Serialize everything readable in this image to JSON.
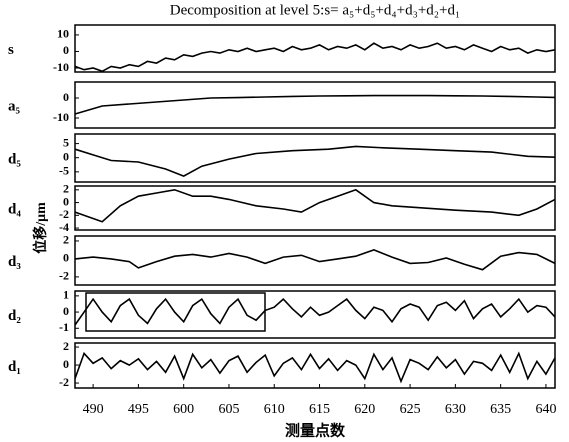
{
  "title": "Decomposition at level 5:s= a₅+d₅+d₄+d₃+d₂+d₁",
  "xlabel": "测量点数",
  "ylabel": "位移/μm",
  "xlim": [
    488,
    541
  ],
  "xticks": [
    490,
    495,
    {
      "value": 500,
      "label": "600"
    },
    {
      "value": 505,
      "label": "605"
    },
    {
      "value": 510,
      "label": "610"
    },
    {
      "value": 515,
      "label": "615"
    },
    {
      "value": 520,
      "label": "620"
    },
    {
      "value": 525,
      "label": "625"
    },
    {
      "value": 530,
      "label": "630"
    },
    {
      "value": 535,
      "label": "635"
    },
    {
      "value": 540,
      "label": "640"
    }
  ],
  "chart_data": [
    {
      "type": "line",
      "label": "s",
      "color": "#000000",
      "ylim": [
        -12.4,
        16
      ],
      "yticks": [
        -10,
        0,
        10
      ],
      "x": [
        488,
        489,
        490,
        491,
        492,
        493,
        494,
        495,
        496,
        497,
        498,
        499,
        500,
        501,
        502,
        503,
        504,
        505,
        506,
        507,
        508,
        509,
        510,
        511,
        512,
        513,
        514,
        515,
        516,
        517,
        518,
        519,
        520,
        521,
        522,
        523,
        524,
        525,
        526,
        527,
        528,
        529,
        530,
        531,
        532,
        533,
        534,
        535,
        536,
        537,
        538,
        539,
        540,
        541
      ],
      "values": [
        -9,
        -11,
        -10,
        -12,
        -9,
        -10,
        -8,
        -9,
        -6,
        -7,
        -4,
        -5,
        -2,
        -3,
        -1,
        0,
        -1,
        1,
        0,
        2,
        0,
        1,
        2,
        0,
        3,
        1,
        2,
        4,
        1,
        3,
        2,
        4,
        1,
        5,
        2,
        3,
        1,
        4,
        2,
        3,
        5,
        2,
        3,
        1,
        4,
        2,
        0,
        3,
        1,
        2,
        -1,
        1,
        0,
        1
      ]
    },
    {
      "type": "line",
      "label": "a₅",
      "color": "#000000",
      "ylim": [
        -15,
        8
      ],
      "yticks": [
        -10,
        0
      ],
      "x": [
        488,
        491,
        494,
        497,
        500,
        503,
        506,
        509,
        512,
        515,
        518,
        521,
        524,
        527,
        530,
        533,
        536,
        539,
        541
      ],
      "values": [
        -8,
        -4,
        -3,
        -2,
        -1,
        0,
        0.2,
        0.5,
        0.8,
        1,
        1.1,
        1.2,
        1.2,
        1.2,
        1.1,
        1,
        0.8,
        0.5,
        0.3
      ]
    },
    {
      "type": "line",
      "label": "d₅",
      "color": "#000000",
      "ylim": [
        -8.6,
        8.4
      ],
      "yticks": [
        -5,
        0,
        5
      ],
      "x": [
        488,
        490,
        492,
        495,
        498,
        500,
        502,
        505,
        508,
        512,
        516,
        519,
        522,
        526,
        530,
        534,
        538,
        541
      ],
      "values": [
        3,
        1,
        -1,
        -1.5,
        -4,
        -6.5,
        -3,
        -0.5,
        1.5,
        2.5,
        3,
        4,
        3.5,
        3,
        2.5,
        2,
        0.5,
        0.2
      ]
    },
    {
      "type": "line",
      "label": "d₄",
      "color": "#000000",
      "ylim": [
        -4.3,
        2.6
      ],
      "yticks": [
        -4,
        -2,
        0,
        2
      ],
      "x": [
        488,
        490,
        491,
        493,
        495,
        497,
        499,
        501,
        503,
        505,
        508,
        511,
        513,
        515,
        517,
        519,
        521,
        523,
        526,
        530,
        534,
        537,
        539,
        541
      ],
      "values": [
        -1.5,
        -2.5,
        -3,
        -0.5,
        1,
        1.5,
        2,
        1,
        1,
        0.5,
        -0.5,
        -1,
        -1.5,
        0,
        1,
        2,
        0,
        -0.5,
        -0.8,
        -1.2,
        -1.5,
        -2,
        -1,
        0.5
      ]
    },
    {
      "type": "line",
      "label": "d₃",
      "color": "#000000",
      "ylim": [
        -2.9,
        2.55
      ],
      "yticks": [
        -2,
        0,
        2
      ],
      "x": [
        488,
        490,
        492,
        494,
        495,
        497,
        499,
        501,
        503,
        505,
        507,
        509,
        511,
        513,
        515,
        517,
        519,
        521,
        523,
        525,
        527,
        529,
        531,
        533,
        535,
        537,
        539,
        541
      ],
      "values": [
        0,
        0.2,
        0,
        -0.3,
        -1,
        -0.3,
        0.3,
        0.5,
        0.2,
        0.6,
        0.2,
        -0.5,
        0.2,
        0.4,
        -0.3,
        0,
        0.3,
        1,
        0.2,
        -0.5,
        -0.4,
        0.1,
        -0.6,
        -1.2,
        0.3,
        0.7,
        0.5,
        -0.5
      ]
    },
    {
      "type": "line",
      "label": "d₂",
      "color": "#000000",
      "ylim": [
        -1.6,
        1.3
      ],
      "yticks": [
        -1,
        0,
        1
      ],
      "x": [
        488,
        489,
        490,
        491,
        492,
        493,
        494,
        495,
        496,
        497,
        498,
        499,
        500,
        501,
        502,
        503,
        504,
        505,
        506,
        507,
        508,
        509,
        510,
        511,
        512,
        513,
        514,
        515,
        516,
        517,
        518,
        519,
        520,
        521,
        522,
        523,
        524,
        525,
        526,
        527,
        528,
        529,
        530,
        531,
        532,
        533,
        534,
        535,
        536,
        537,
        538,
        539,
        540,
        541
      ],
      "values": [
        -0.8,
        0,
        0.8,
        0,
        -0.6,
        0.4,
        0.8,
        -0.2,
        -0.7,
        0.2,
        0.8,
        0,
        -0.6,
        0.4,
        0.8,
        -0.1,
        -0.7,
        0.3,
        0.8,
        -0.2,
        -0.5,
        0.1,
        0.3,
        0.8,
        0.2,
        -0.3,
        0.3,
        -0.2,
        0,
        0.4,
        0.8,
        0.1,
        -0.4,
        0.3,
        0.1,
        -0.6,
        0.2,
        0.5,
        0.3,
        -0.5,
        0.4,
        0.6,
        0.1,
        0.7,
        -0.4,
        0.2,
        0.5,
        -0.3,
        0.2,
        0.8,
        0,
        0.4,
        0.3,
        -0.3
      ]
    },
    {
      "type": "line",
      "label": "d₁",
      "color": "#000000",
      "ylim": [
        -2.55,
        2.45
      ],
      "yticks": [
        -2,
        0,
        2
      ],
      "x": [
        488,
        489,
        490,
        491,
        492,
        493,
        494,
        495,
        496,
        497,
        498,
        499,
        500,
        501,
        502,
        503,
        504,
        505,
        506,
        507,
        508,
        509,
        510,
        511,
        512,
        513,
        514,
        515,
        516,
        517,
        518,
        519,
        520,
        521,
        522,
        523,
        524,
        525,
        526,
        527,
        528,
        529,
        530,
        531,
        532,
        533,
        534,
        535,
        536,
        537,
        538,
        539,
        540,
        541
      ],
      "values": [
        -1.5,
        1.3,
        0.2,
        0.8,
        -0.4,
        0.5,
        0,
        0.7,
        -0.5,
        0.4,
        -0.8,
        1,
        -1.5,
        1.2,
        -0.3,
        0.6,
        -0.9,
        0.5,
        1,
        -0.8,
        0.3,
        1.1,
        -1.2,
        0.2,
        0.8,
        -0.5,
        1.2,
        -0.4,
        0.7,
        -0.6,
        0.5,
        0,
        -1.5,
        1.2,
        -0.5,
        0.8,
        -1.8,
        0.6,
        0.2,
        -0.5,
        0.9,
        -0.3,
        0.6,
        -1,
        0.4,
        0.2,
        -0.6,
        1.1,
        -0.8,
        1.3,
        -1.5,
        0.4,
        -1,
        0.8
      ]
    }
  ]
}
